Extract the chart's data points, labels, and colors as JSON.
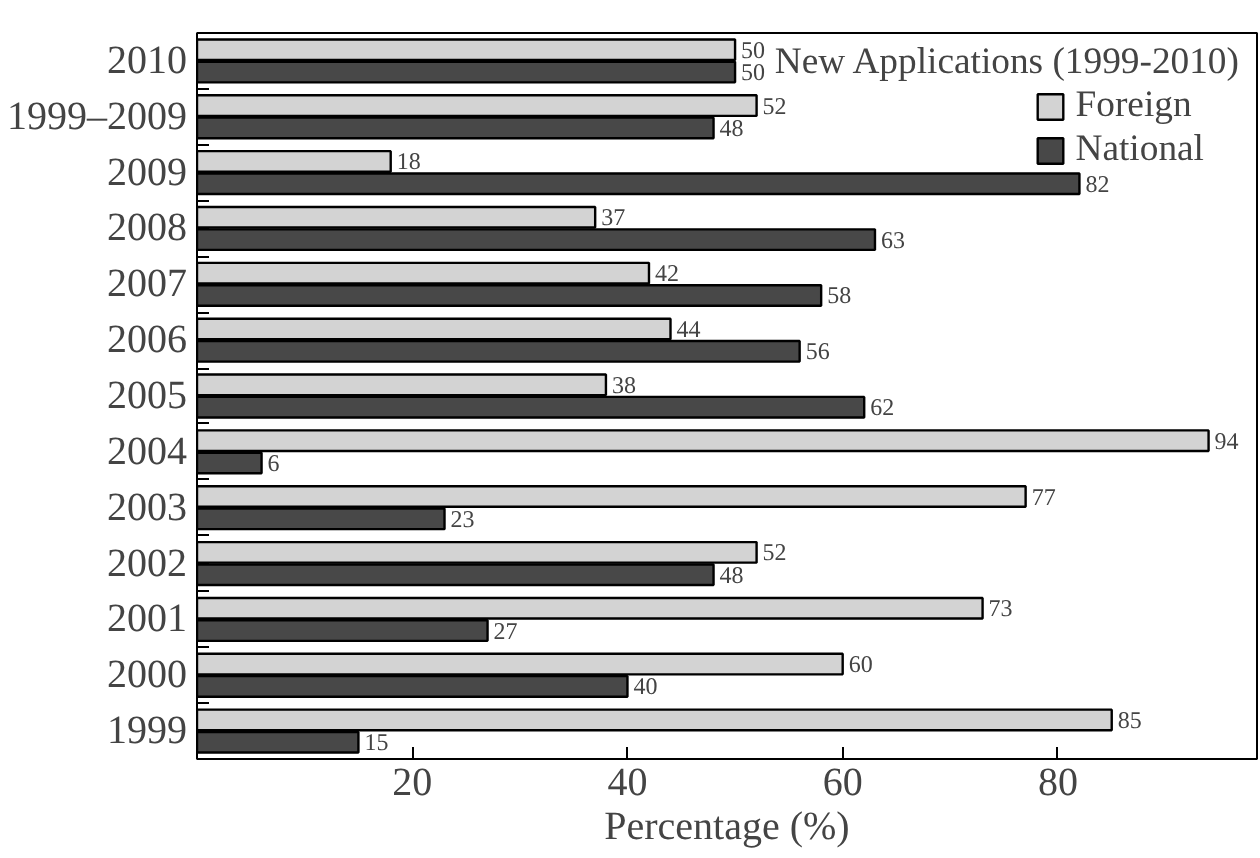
{
  "chart_data": {
    "type": "bar",
    "orientation": "horizontal",
    "title": "New Applications (1999-2010)",
    "xlabel": "Percentage (%)",
    "categories": [
      "2010",
      "1999–2009",
      "2009",
      "2008",
      "2007",
      "2006",
      "2005",
      "2004",
      "2003",
      "2002",
      "2001",
      "2000",
      "1999"
    ],
    "series": [
      {
        "name": "Foreign",
        "color": "#d3d3d3",
        "values": [
          50,
          52,
          18,
          37,
          42,
          44,
          38,
          94,
          77,
          52,
          73,
          60,
          85
        ],
        "value_labels": [
          "50",
          "52",
          "18",
          "37",
          "42",
          "44",
          "38",
          "94",
          "77",
          "52",
          "73",
          "60",
          "85"
        ]
      },
      {
        "name": "National",
        "color": "#484848",
        "values": [
          50,
          48,
          82,
          63,
          58,
          56,
          62,
          6,
          23,
          48,
          27,
          40,
          15
        ],
        "value_labels": [
          "50",
          "48",
          "82",
          "63",
          "58",
          "56",
          "62",
          "6",
          "23",
          "48",
          "27",
          "40",
          "15"
        ]
      }
    ],
    "xlim": [
      0,
      98.5
    ],
    "xticks": [
      20,
      40,
      60,
      80
    ],
    "grid": false,
    "legend": "top right"
  }
}
